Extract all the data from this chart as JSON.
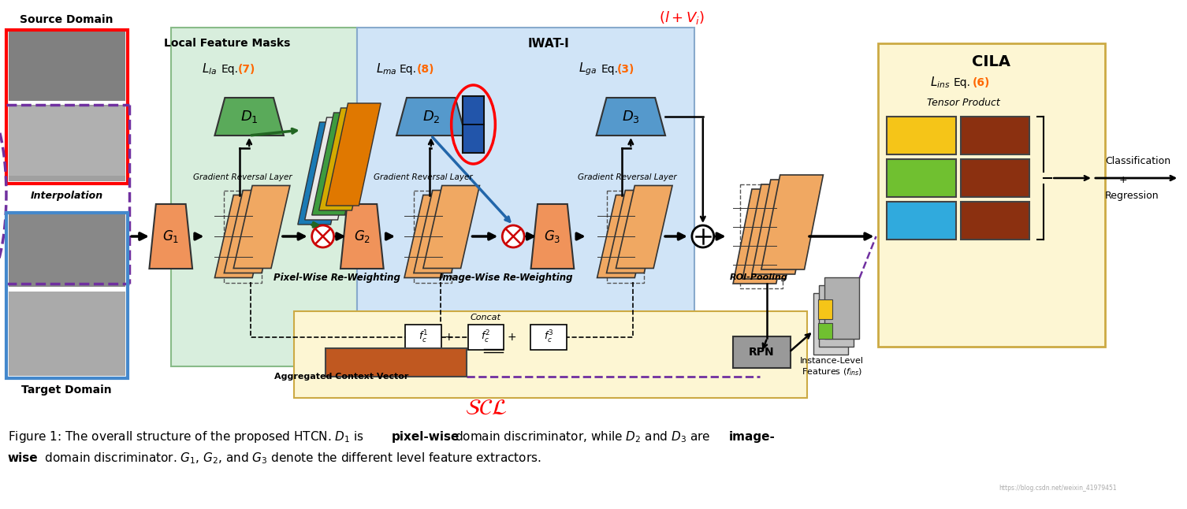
{
  "figure_width": 15.06,
  "figure_height": 6.46,
  "bg_color": "#ffffff",
  "source_domain_label": "Source Domain",
  "target_domain_label": "Target Domain",
  "interpolation_label": "Interpolation",
  "local_feature_masks_label": "Local Feature Masks",
  "gradient_reversal_label": "Gradient Reversal Layer",
  "pixel_wise_label": "Pixel-Wise Re-Weighting",
  "image_wise_label": "Image-Wise Re-Weighting",
  "roi_pooling_label": "ROI-Pooling",
  "instance_level_label": "Instance-Level",
  "features_fins_label": "Features ($f_{ins}$)",
  "aggregated_label": "Aggregated Context Vector",
  "concat_label": "Concat",
  "cila_label": "CILA",
  "tensor_product_label": "Tensor Product",
  "classification_label": "Classification",
  "regression_label": "Regression",
  "rpn_label": "RPN",
  "iwat_label": "IWAT-I",
  "eq6_color": "#ff6600",
  "eq7_color": "#ff6600",
  "eq8_color": "#ff6600",
  "eq3_color": "#ff6600",
  "green_bg": "#d8eedd",
  "blue_bg": "#d0e4f7",
  "yellow_bg": "#fdf6d3",
  "orange_feat": "#f0a862",
  "orange_g": "#f0935a",
  "dark_orange_agg": "#c05820",
  "green_d1": "#5aaa5a",
  "blue_d": "#5599cc",
  "dark_blue_rect": "#2255aa",
  "red_circle": "#cc0000",
  "purple_dashed": "#7030a0",
  "yellow_cila": "#f5c518",
  "green_cila": "#70c030",
  "blue_cila": "#30aadd",
  "brown_cila": "#8B3010",
  "lf_colors": [
    "#3399cc",
    "#ffffff",
    "#5aaa5a",
    "#f0c030",
    "#f0a030"
  ],
  "gray_rpn": "#999999"
}
